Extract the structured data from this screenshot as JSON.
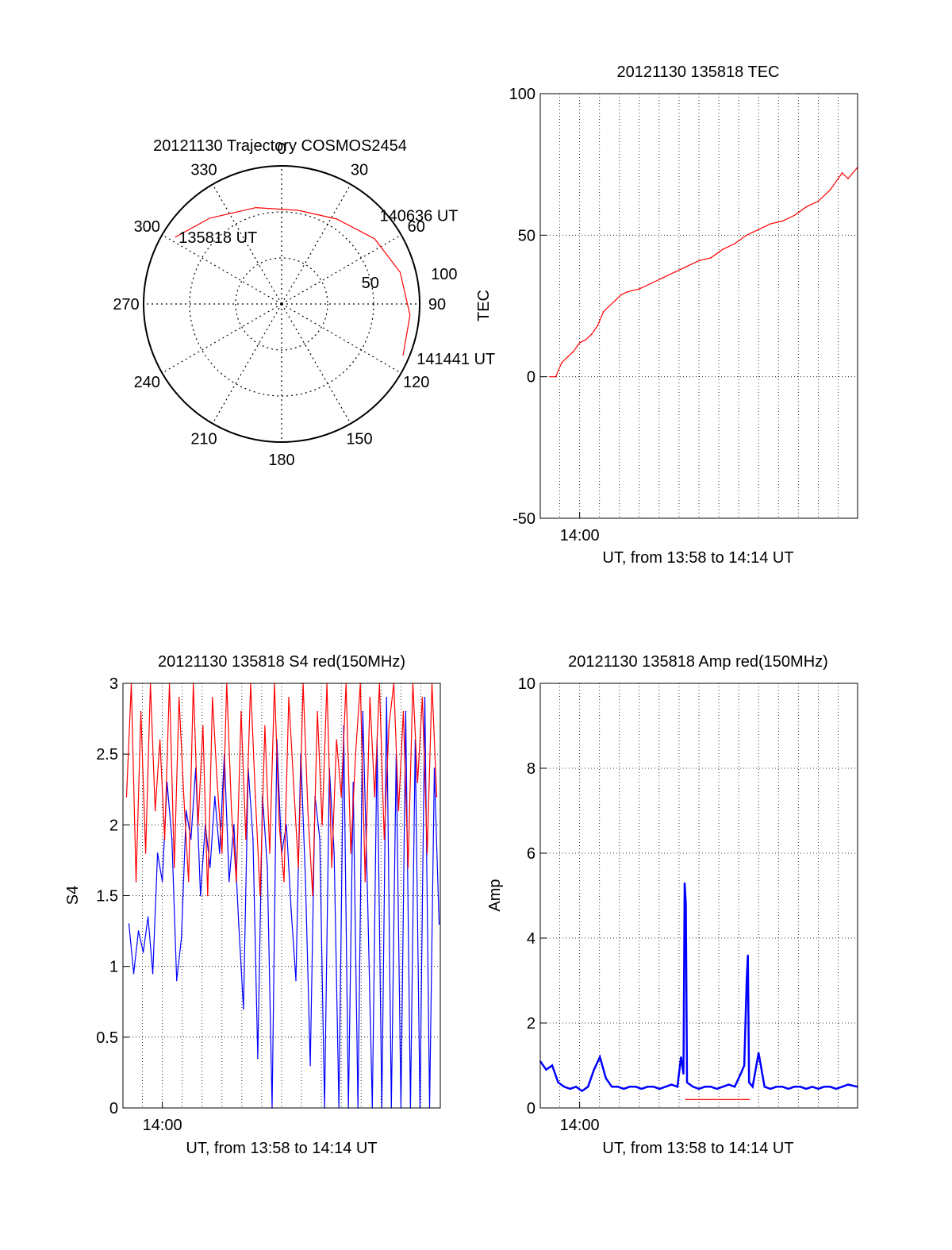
{
  "chart_data": [
    {
      "type": "polar",
      "title": "20121130 Trajectory COSMOS2454",
      "azimuth_labels": [
        "0",
        "30",
        "60",
        "90",
        "120",
        "150",
        "180",
        "210",
        "240",
        "270",
        "300",
        "330"
      ],
      "radius_labels": [
        "50",
        "100"
      ],
      "rings_zenith_deg": [
        30,
        60
      ],
      "track_color": "#ff0000",
      "track": [
        {
          "az": 302,
          "zenith": 82
        },
        {
          "az": 320,
          "zenith": 73
        },
        {
          "az": 345,
          "zenith": 65
        },
        {
          "az": 10,
          "zenith": 62
        },
        {
          "az": 33,
          "zenith": 66
        },
        {
          "az": 55,
          "zenith": 74
        },
        {
          "az": 75,
          "zenith": 80
        },
        {
          "az": 95,
          "zenith": 84
        },
        {
          "az": 113,
          "zenith": 86
        }
      ],
      "annotations": [
        {
          "text": "135818 UT",
          "az": 303,
          "zenith": 80
        },
        {
          "text": "140636 UT",
          "az": 48,
          "zenith": 86
        },
        {
          "text": "141441 UT",
          "az": 112,
          "zenith": 95
        }
      ]
    },
    {
      "type": "line",
      "title": "20121130 135818 TEC",
      "xlabel": "UT, from 13:58 to 14:14 UT",
      "ylabel": "TEC",
      "xlim": [
        13.967,
        14.233
      ],
      "ylim": [
        -50,
        100
      ],
      "yticks": [
        "100",
        "50",
        "0",
        "-50"
      ],
      "xticks": [
        {
          "value": 14.0,
          "label": "14:00"
        }
      ],
      "grid": true,
      "series": [
        {
          "color": "#ff0000",
          "x": [
            13.975,
            13.98,
            13.985,
            13.99,
            13.995,
            14.0,
            14.005,
            14.01,
            14.015,
            14.02,
            14.025,
            14.03,
            14.035,
            14.04,
            14.05,
            14.06,
            14.07,
            14.08,
            14.09,
            14.1,
            14.11,
            14.12,
            14.13,
            14.14,
            14.15,
            14.16,
            14.17,
            14.18,
            14.19,
            14.2,
            14.21,
            14.22,
            14.225,
            14.233
          ],
          "y": [
            0,
            0,
            5,
            7,
            9,
            12,
            13,
            15,
            18,
            23,
            25,
            27,
            29,
            30,
            31,
            33,
            35,
            37,
            39,
            41,
            42,
            45,
            47,
            50,
            52,
            54,
            55,
            57,
            60,
            62,
            66,
            72,
            70,
            74
          ]
        }
      ]
    },
    {
      "type": "line",
      "title": "20121130 135818 S4 red(150MHz)",
      "xlabel": "UT, from 13:58 to 14:14 UT",
      "ylabel": "S4",
      "xlim": [
        13.967,
        14.233
      ],
      "ylim": [
        0,
        3
      ],
      "yticks": [
        "3",
        "2.5",
        "2",
        "1.5",
        "1",
        "0.5",
        "0"
      ],
      "xticks": [
        {
          "value": 14.0,
          "label": "14:00"
        }
      ],
      "grid": true,
      "series": [
        {
          "color": "#0000ff",
          "x": [
            13.972,
            13.976,
            13.98,
            13.984,
            13.988,
            13.992,
            13.996,
            14.0,
            14.004,
            14.008,
            14.012,
            14.016,
            14.02,
            14.024,
            14.028,
            14.032,
            14.036,
            14.04,
            14.044,
            14.048,
            14.052,
            14.056,
            14.06,
            14.064,
            14.068,
            14.072,
            14.076,
            14.08,
            14.084,
            14.088,
            14.092,
            14.096,
            14.1,
            14.104,
            14.108,
            14.112,
            14.116,
            14.12,
            14.124,
            14.128,
            14.132,
            14.136,
            14.14,
            14.144,
            14.148,
            14.152,
            14.156,
            14.16,
            14.164,
            14.168,
            14.172,
            14.176,
            14.18,
            14.184,
            14.188,
            14.192,
            14.196,
            14.2,
            14.204,
            14.208,
            14.212,
            14.216,
            14.22,
            14.224,
            14.228,
            14.232
          ],
          "y": [
            1.3,
            0.95,
            1.25,
            1.1,
            1.35,
            0.95,
            1.8,
            1.6,
            2.3,
            1.9,
            0.9,
            1.2,
            2.1,
            1.9,
            2.4,
            1.5,
            2.0,
            1.7,
            2.2,
            1.8,
            2.5,
            1.6,
            2.0,
            1.3,
            0.7,
            2.4,
            1.9,
            0.35,
            2.2,
            1.7,
            0.0,
            2.6,
            1.8,
            2.0,
            1.4,
            0.9,
            2.5,
            1.6,
            0.3,
            2.2,
            1.9,
            0.0,
            2.4,
            1.8,
            0.0,
            2.7,
            0.0,
            2.3,
            0.0,
            2.8,
            1.5,
            0.0,
            2.6,
            0.0,
            2.9,
            0.0,
            2.5,
            0.0,
            2.8,
            0.0,
            2.6,
            0.0,
            2.9,
            0.0,
            2.4,
            1.3
          ]
        },
        {
          "color": "#ff0000",
          "x": [
            13.97,
            13.974,
            13.978,
            13.982,
            13.986,
            13.99,
            13.994,
            13.998,
            14.002,
            14.006,
            14.01,
            14.014,
            14.018,
            14.022,
            14.026,
            14.03,
            14.034,
            14.038,
            14.042,
            14.046,
            14.05,
            14.054,
            14.058,
            14.062,
            14.066,
            14.07,
            14.074,
            14.078,
            14.082,
            14.086,
            14.09,
            14.094,
            14.098,
            14.102,
            14.106,
            14.11,
            14.114,
            14.118,
            14.122,
            14.126,
            14.13,
            14.134,
            14.138,
            14.142,
            14.146,
            14.15,
            14.154,
            14.158,
            14.162,
            14.166,
            14.17,
            14.174,
            14.178,
            14.182,
            14.186,
            14.19,
            14.194,
            14.198,
            14.202,
            14.206,
            14.21,
            14.214,
            14.218,
            14.222,
            14.226,
            14.23
          ],
          "y": [
            2.2,
            3.0,
            1.6,
            2.8,
            1.8,
            3.0,
            2.1,
            2.6,
            1.9,
            3.0,
            1.7,
            2.9,
            2.2,
            1.6,
            3.0,
            2.0,
            2.7,
            1.5,
            2.9,
            2.3,
            1.8,
            3.0,
            2.1,
            1.6,
            2.8,
            1.9,
            3.0,
            2.2,
            1.5,
            2.7,
            1.8,
            3.0,
            2.0,
            1.6,
            2.9,
            2.3,
            1.7,
            3.0,
            2.1,
            1.5,
            2.8,
            2.0,
            3.0,
            1.7,
            2.6,
            2.2,
            3.0,
            1.8,
            2.5,
            3.0,
            1.6,
            2.9,
            2.2,
            3.0,
            1.9,
            2.7,
            3.0,
            2.1,
            2.8,
            1.7,
            3.0,
            2.3,
            2.9,
            1.8,
            3.0,
            2.2
          ]
        }
      ]
    },
    {
      "type": "line",
      "title": "20121130 135818 Amp red(150MHz)",
      "xlabel": "UT, from 13:58 to 14:14 UT",
      "ylabel": "Amp",
      "xlim": [
        13.967,
        14.233
      ],
      "ylim": [
        0,
        10
      ],
      "yticks": [
        "10",
        "8",
        "6",
        "4",
        "2",
        "0"
      ],
      "xticks": [
        {
          "value": 14.0,
          "label": "14:00"
        }
      ],
      "grid": true,
      "series": [
        {
          "color": "#0000ff",
          "x": [
            13.967,
            13.972,
            13.977,
            13.982,
            13.987,
            13.992,
            13.997,
            14.002,
            14.007,
            14.012,
            14.017,
            14.022,
            14.027,
            14.032,
            14.037,
            14.042,
            14.047,
            14.052,
            14.057,
            14.062,
            14.067,
            14.072,
            14.077,
            14.082,
            14.085,
            14.087,
            14.088,
            14.089,
            14.09,
            14.095,
            14.1,
            14.105,
            14.11,
            14.115,
            14.12,
            14.125,
            14.13,
            14.135,
            14.138,
            14.14,
            14.141,
            14.142,
            14.145,
            14.15,
            14.155,
            14.16,
            14.165,
            14.17,
            14.175,
            14.18,
            14.185,
            14.19,
            14.195,
            14.2,
            14.205,
            14.21,
            14.215,
            14.22,
            14.225,
            14.233
          ],
          "y": [
            1.1,
            0.9,
            1.0,
            0.6,
            0.5,
            0.45,
            0.5,
            0.4,
            0.5,
            0.9,
            1.2,
            0.7,
            0.5,
            0.5,
            0.45,
            0.5,
            0.5,
            0.45,
            0.5,
            0.5,
            0.45,
            0.5,
            0.55,
            0.5,
            1.2,
            0.8,
            5.3,
            4.8,
            0.6,
            0.5,
            0.45,
            0.5,
            0.5,
            0.45,
            0.5,
            0.55,
            0.5,
            0.8,
            1.0,
            3.0,
            3.6,
            0.6,
            0.5,
            1.3,
            0.5,
            0.45,
            0.5,
            0.5,
            0.45,
            0.5,
            0.5,
            0.45,
            0.5,
            0.45,
            0.5,
            0.5,
            0.45,
            0.5,
            0.55,
            0.5
          ]
        },
        {
          "color": "#ff0000",
          "x": [
            14.089,
            14.142
          ],
          "y": [
            0.2,
            0.2
          ]
        }
      ]
    }
  ]
}
